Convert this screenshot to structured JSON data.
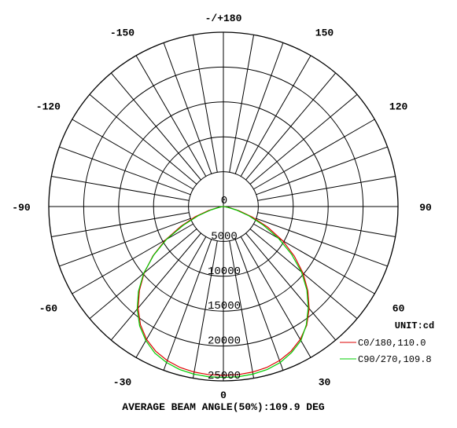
{
  "chart_data": {
    "type": "polar",
    "angle_labels": [
      {
        "angle": 180,
        "text": "-/+180"
      },
      {
        "angle": 150,
        "text": "150"
      },
      {
        "angle": 120,
        "text": "120"
      },
      {
        "angle": 90,
        "text": "90"
      },
      {
        "angle": 60,
        "text": "60"
      },
      {
        "angle": 30,
        "text": "30"
      },
      {
        "angle": 0,
        "text": "0"
      },
      {
        "angle": -30,
        "text": "-30"
      },
      {
        "angle": -60,
        "text": "-60"
      },
      {
        "angle": -90,
        "text": "-90"
      },
      {
        "angle": -120,
        "text": "-120"
      },
      {
        "angle": -150,
        "text": "-150"
      }
    ],
    "radial_ticks": [
      0,
      5000,
      10000,
      15000,
      20000,
      25000
    ],
    "radial_tick_labels": [
      "0",
      "5000",
      "10000",
      "15000",
      "20000",
      "25000"
    ],
    "rmax": 25000,
    "unit_label": "UNIT:cd",
    "footer": "AVERAGE BEAM ANGLE(50%):109.9 DEG",
    "series": [
      {
        "name": "C0/180,110.0",
        "color": "#dd0000",
        "points": [
          [
            -90,
            0
          ],
          [
            -85,
            150
          ],
          [
            -80,
            700
          ],
          [
            -75,
            2200
          ],
          [
            -70,
            4300
          ],
          [
            -65,
            6700
          ],
          [
            -60,
            9600
          ],
          [
            -55,
            12300
          ],
          [
            -50,
            14800
          ],
          [
            -45,
            17000
          ],
          [
            -40,
            19000
          ],
          [
            -35,
            20700
          ],
          [
            -30,
            22000
          ],
          [
            -25,
            22900
          ],
          [
            -20,
            23500
          ],
          [
            -15,
            23900
          ],
          [
            -10,
            24100
          ],
          [
            -5,
            24200
          ],
          [
            0,
            24200
          ],
          [
            5,
            24200
          ],
          [
            10,
            24100
          ],
          [
            15,
            23900
          ],
          [
            20,
            23500
          ],
          [
            25,
            22900
          ],
          [
            30,
            22000
          ],
          [
            35,
            20800
          ],
          [
            40,
            19100
          ],
          [
            45,
            17100
          ],
          [
            50,
            14900
          ],
          [
            55,
            12400
          ],
          [
            60,
            9800
          ],
          [
            65,
            7000
          ],
          [
            70,
            4400
          ],
          [
            75,
            2300
          ],
          [
            80,
            800
          ],
          [
            85,
            150
          ],
          [
            90,
            0
          ]
        ]
      },
      {
        "name": "C90/270,109.8",
        "color": "#00cc00",
        "points": [
          [
            -90,
            0
          ],
          [
            -85,
            100
          ],
          [
            -80,
            500
          ],
          [
            -75,
            1800
          ],
          [
            -70,
            3800
          ],
          [
            -65,
            6300
          ],
          [
            -60,
            9400
          ],
          [
            -55,
            12200
          ],
          [
            -50,
            14900
          ],
          [
            -45,
            17200
          ],
          [
            -40,
            19200
          ],
          [
            -35,
            20900
          ],
          [
            -30,
            22200
          ],
          [
            -25,
            23200
          ],
          [
            -20,
            23800
          ],
          [
            -15,
            24200
          ],
          [
            -10,
            24400
          ],
          [
            -5,
            24500
          ],
          [
            0,
            24500
          ],
          [
            5,
            24500
          ],
          [
            10,
            24400
          ],
          [
            15,
            24200
          ],
          [
            20,
            23800
          ],
          [
            25,
            23100
          ],
          [
            30,
            22200
          ],
          [
            35,
            20700
          ],
          [
            40,
            18900
          ],
          [
            45,
            16900
          ],
          [
            50,
            14600
          ],
          [
            55,
            11900
          ],
          [
            60,
            9100
          ],
          [
            65,
            6300
          ],
          [
            70,
            3900
          ],
          [
            75,
            1900
          ],
          [
            80,
            600
          ],
          [
            85,
            100
          ],
          [
            90,
            0
          ]
        ]
      }
    ]
  }
}
